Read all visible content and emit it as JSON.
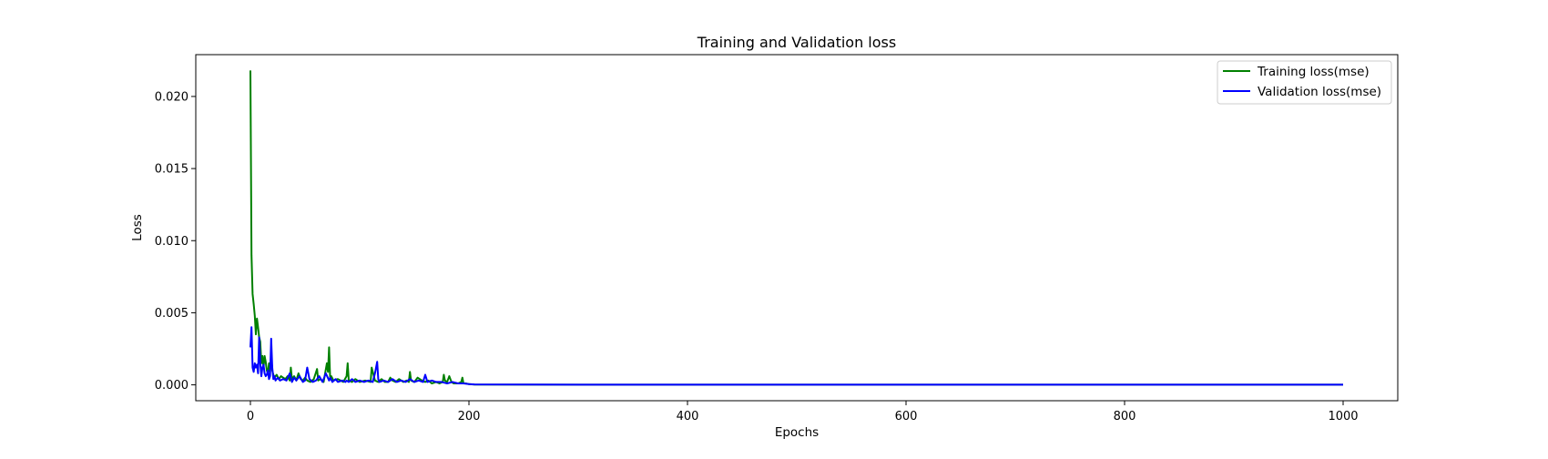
{
  "chart_data": {
    "type": "line",
    "title": "Training and Validation loss",
    "xlabel": "Epochs",
    "ylabel": "Loss",
    "xlim": [
      -50,
      1050
    ],
    "ylim": [
      -0.0011,
      0.0229
    ],
    "xticks": [
      0,
      200,
      400,
      600,
      800,
      1000
    ],
    "xtick_labels": [
      "0",
      "200",
      "400",
      "600",
      "800",
      "1000"
    ],
    "yticks": [
      0.0,
      0.005,
      0.01,
      0.015,
      0.02
    ],
    "ytick_labels": [
      "0.000",
      "0.005",
      "0.010",
      "0.015",
      "0.020"
    ],
    "grid": false,
    "legend_position": "top-right",
    "series": [
      {
        "name": "Training loss(mse)",
        "color": "#008000",
        "x": [
          0,
          1,
          2,
          3,
          4,
          5,
          6,
          7,
          8,
          9,
          10,
          11,
          12,
          13,
          14,
          15,
          16,
          17,
          18,
          19,
          20,
          21,
          22,
          24,
          26,
          28,
          30,
          32,
          34,
          36,
          37,
          38,
          40,
          42,
          44,
          46,
          48,
          50,
          52,
          55,
          58,
          61,
          62,
          64,
          67,
          70,
          71,
          72,
          73,
          74,
          76,
          80,
          85,
          88,
          89,
          90,
          93,
          96,
          100,
          105,
          110,
          111,
          112,
          114,
          117,
          120,
          123,
          126,
          128,
          130,
          133,
          136,
          140,
          143,
          145,
          146,
          147,
          150,
          153,
          157,
          160,
          163,
          166,
          170,
          173,
          176,
          177,
          178,
          180,
          182,
          184,
          186,
          190,
          193,
          194,
          195,
          197,
          200,
          205,
          300,
          400,
          500,
          600,
          700,
          800,
          900,
          1000
        ],
        "y": [
          0.0218,
          0.009,
          0.0063,
          0.0056,
          0.0048,
          0.0035,
          0.0046,
          0.004,
          0.0033,
          0.003,
          0.0015,
          0.002,
          0.0012,
          0.002,
          0.0016,
          0.001,
          0.0008,
          0.0015,
          0.0009,
          0.0021,
          0.001,
          0.0007,
          0.0005,
          0.0007,
          0.0004,
          0.0006,
          0.0005,
          0.0004,
          0.0006,
          0.0003,
          0.0012,
          0.0004,
          0.0006,
          0.0003,
          0.0008,
          0.0004,
          0.0003,
          0.0005,
          0.0003,
          0.0002,
          0.0004,
          0.0011,
          0.0003,
          0.0004,
          0.0002,
          0.0015,
          0.0009,
          0.0026,
          0.0004,
          0.0006,
          0.0003,
          0.0004,
          0.0002,
          0.0006,
          0.0015,
          0.0003,
          0.0002,
          0.0004,
          0.0002,
          0.0003,
          0.0002,
          0.0012,
          0.0009,
          0.0003,
          0.0002,
          0.0004,
          0.0002,
          0.0002,
          0.0005,
          0.0003,
          0.0002,
          0.0004,
          0.0002,
          0.0003,
          0.0002,
          0.0009,
          0.0003,
          0.0002,
          0.0005,
          0.0003,
          0.0002,
          0.0003,
          0.0001,
          0.0002,
          0.0001,
          0.0002,
          0.0007,
          0.0003,
          0.0002,
          0.0006,
          0.0002,
          0.0001,
          0.0001,
          0.0002,
          0.0005,
          0.0001,
          0.0001,
          5e-05,
          2e-05,
          1e-05,
          1e-05,
          1e-05,
          1e-05,
          1e-05,
          1e-05,
          1e-05,
          1e-05
        ]
      },
      {
        "name": "Validation loss(mse)",
        "color": "#0000ff",
        "x": [
          0,
          1,
          2,
          3,
          4,
          5,
          6,
          7,
          8,
          9,
          10,
          11,
          12,
          13,
          14,
          15,
          16,
          17,
          18,
          19,
          20,
          21,
          22,
          23,
          25,
          27,
          30,
          33,
          36,
          38,
          40,
          42,
          45,
          48,
          50,
          52,
          54,
          57,
          60,
          63,
          66,
          69,
          72,
          73,
          75,
          78,
          80,
          84,
          87,
          88,
          90,
          93,
          96,
          100,
          104,
          108,
          112,
          114,
          116,
          117,
          118,
          122,
          126,
          130,
          134,
          138,
          142,
          146,
          150,
          154,
          158,
          160,
          162,
          166,
          170,
          175,
          180,
          185,
          190,
          195,
          200,
          205,
          300,
          400,
          500,
          600,
          700,
          800,
          900,
          1000
        ],
        "y": [
          0.0026,
          0.004,
          0.0012,
          0.0009,
          0.0015,
          0.0012,
          0.0014,
          0.0008,
          0.0033,
          0.0015,
          0.0006,
          0.0012,
          0.0014,
          0.0008,
          0.0006,
          0.0007,
          0.001,
          0.0004,
          0.0006,
          0.0032,
          0.0012,
          0.0004,
          0.0006,
          0.0003,
          0.0005,
          0.0003,
          0.0004,
          0.0003,
          0.0008,
          0.0002,
          0.0005,
          0.0003,
          0.0006,
          0.0002,
          0.0003,
          0.0012,
          0.0004,
          0.0002,
          0.0003,
          0.0006,
          0.0002,
          0.0008,
          0.0003,
          0.0005,
          0.0002,
          0.0004,
          0.0002,
          0.0003,
          0.0002,
          0.0003,
          0.0002,
          0.0004,
          0.0002,
          0.0003,
          0.0002,
          0.0003,
          0.0002,
          0.0008,
          0.0016,
          0.0004,
          0.0002,
          0.0003,
          0.0002,
          0.0004,
          0.0002,
          0.0003,
          0.0002,
          0.0004,
          0.0002,
          0.0003,
          0.0002,
          0.0007,
          0.0002,
          0.0003,
          0.0002,
          0.0002,
          0.0001,
          0.0002,
          0.0001,
          0.0001,
          5e-05,
          3e-05,
          1e-05,
          1e-05,
          1e-05,
          1e-05,
          1e-05,
          1e-05,
          1e-05,
          1e-05
        ]
      }
    ]
  }
}
